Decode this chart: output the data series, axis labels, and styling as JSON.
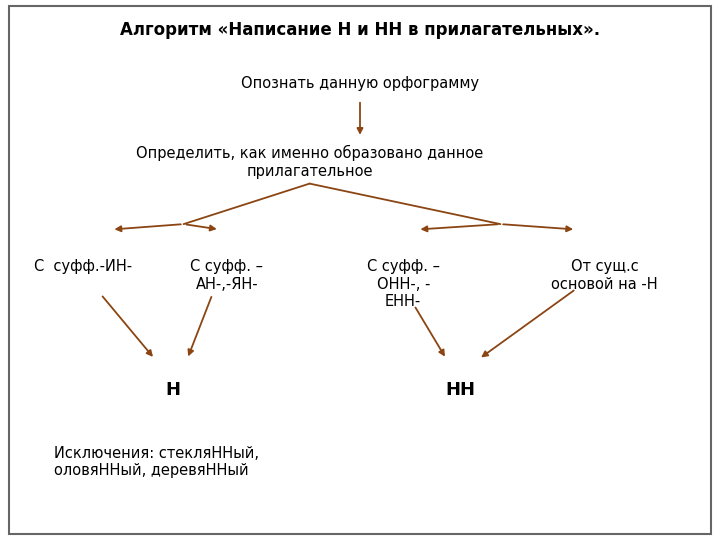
{
  "title": "Алгоритм «Написание Н и НН в прилагательных».",
  "node1": "Опознать данную орфограмму",
  "node2": "Определить, как именно образовано данное\nприлагательное",
  "node_left1": "С  суфф.-ИН-",
  "node_left2": "С суфф. –\nАН-,-ЯН-",
  "node_right1": "С суфф. –\nОНН-, -\nЕНН-",
  "node_right2": "От сущ.с\nосновой на -Н",
  "result_left": "Н",
  "result_right": "НН",
  "exceptions": "Исключения: стекляННый,\nоловяННый, деревяННый",
  "arrow_color": "#8B4513",
  "border_color": "#666666",
  "bg_color": "#ffffff",
  "text_color": "#000000",
  "title_fontsize": 12,
  "body_fontsize": 10.5,
  "result_fontsize": 13
}
